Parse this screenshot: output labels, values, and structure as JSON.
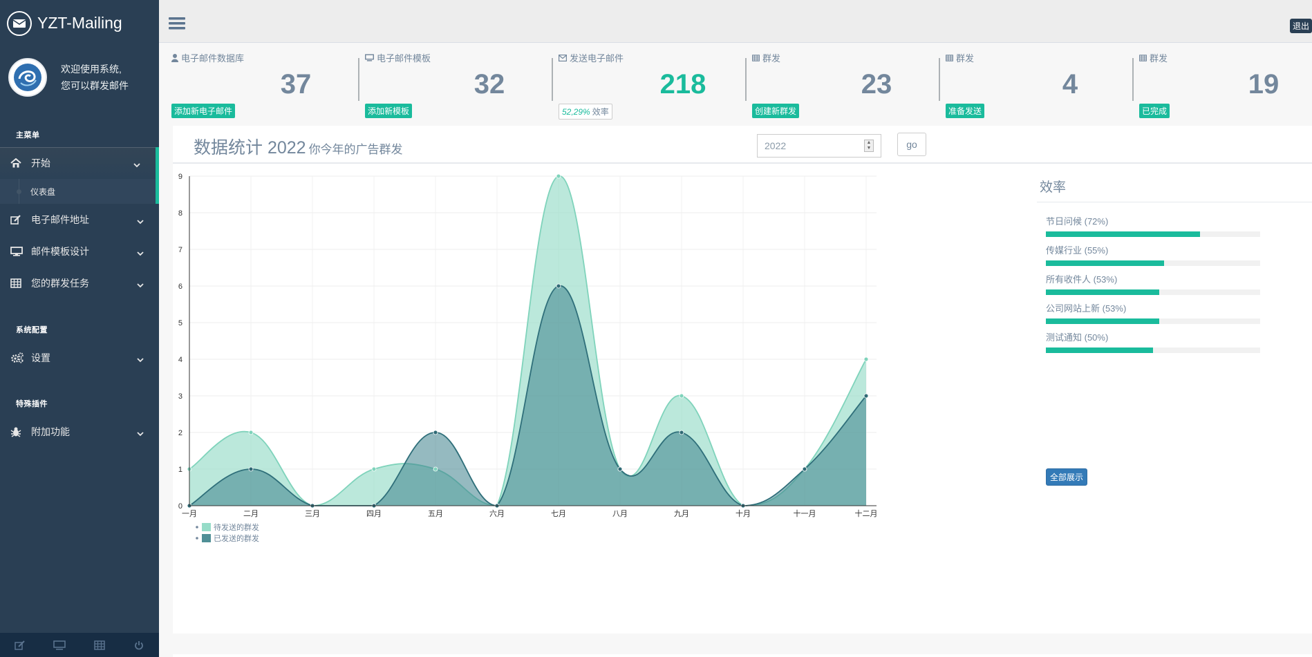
{
  "brand": {
    "title": "YZT-Mailing"
  },
  "profile": {
    "line1": "欢迎使用系统,",
    "line2": "您可以群发邮件"
  },
  "sidebar": {
    "section_main": "主菜单",
    "section_config": "系统配置",
    "section_plugins": "特殊插件",
    "items": [
      {
        "label": "开始",
        "icon": "home-icon"
      },
      {
        "label": "电子邮件地址",
        "icon": "edit-icon"
      },
      {
        "label": "邮件模板设计",
        "icon": "desktop-icon"
      },
      {
        "label": "您的群发任务",
        "icon": "table-icon"
      },
      {
        "label": "设置",
        "icon": "gears-icon"
      },
      {
        "label": "附加功能",
        "icon": "bug-icon"
      }
    ],
    "submenu": {
      "label": "仪表盘"
    }
  },
  "topnav": {
    "logout": "退出"
  },
  "tiles": [
    {
      "head": "电子邮件数据库",
      "count": "37",
      "badge": "添加新电子邮件",
      "icon": "user-icon"
    },
    {
      "head": "电子邮件模板",
      "count": "32",
      "badge": "添加新模板",
      "icon": "desktop-icon"
    },
    {
      "head": "发送电子邮件",
      "count": "218",
      "badge_em": "52,29%",
      "badge_rest": "效率",
      "icon": "envelope-icon"
    },
    {
      "head": "群发",
      "count": "23",
      "badge": "创建新群发",
      "icon": "table-icon"
    },
    {
      "head": "群发",
      "count": "4",
      "badge": "准备发送",
      "icon": "table-icon"
    },
    {
      "head": "群发",
      "count": "19",
      "badge": "已完成",
      "icon": "table-icon"
    }
  ],
  "panel": {
    "title": "数据统计 2022",
    "subtitle": "你今年的广告群发",
    "year_value": "2022",
    "go_label": "go"
  },
  "efficiency": {
    "title": "效率",
    "items": [
      {
        "label": "节日问候 (72%)",
        "value": 0.72
      },
      {
        "label": "传媒行业 (55%)",
        "value": 0.55
      },
      {
        "label": "所有收件人 (53%)",
        "value": 0.53
      },
      {
        "label": "公司网站上新 (53%)",
        "value": 0.53
      },
      {
        "label": "测试通知 (50%)",
        "value": 0.5
      }
    ],
    "show_all": "全部展示"
  },
  "chart_data": {
    "type": "area",
    "categories": [
      "一月",
      "二月",
      "三月",
      "四月",
      "五月",
      "六月",
      "七月",
      "八月",
      "九月",
      "十月",
      "十一月",
      "十二月"
    ],
    "series": [
      {
        "name": "待发送的群发",
        "values": [
          1,
          2,
          0,
          1,
          1,
          0,
          9,
          1,
          3,
          0,
          1,
          4
        ],
        "color": "#96dcc8"
      },
      {
        "name": "已发送的群发",
        "values": [
          0,
          1,
          0,
          0,
          2,
          0,
          6,
          1,
          2,
          0,
          1,
          3
        ],
        "color": "#5a9ba2"
      }
    ],
    "ylim": [
      0,
      9
    ],
    "yticks": [
      0,
      1,
      2,
      3,
      4,
      5,
      6,
      7,
      8,
      9
    ],
    "legend_position": "bottom-left",
    "grid": true
  }
}
